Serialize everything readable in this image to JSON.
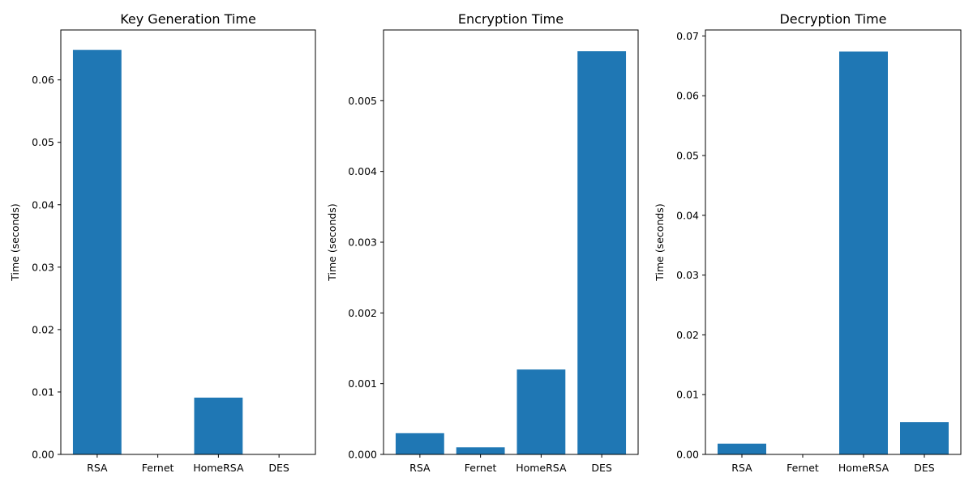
{
  "figure": {
    "bar_color": "#1f77b4",
    "background": "#ffffff"
  },
  "chart_data": [
    {
      "type": "bar",
      "title": "Key Generation Time",
      "xlabel": "",
      "ylabel": "Time (seconds)",
      "categories": [
        "RSA",
        "Fernet",
        "HomeRSA",
        "DES"
      ],
      "values": [
        0.0648,
        0.0,
        0.0091,
        0.0
      ],
      "ylim": [
        0,
        0.068
      ],
      "yticks": [
        "0.00",
        "0.01",
        "0.02",
        "0.03",
        "0.04",
        "0.05",
        "0.06"
      ],
      "ytick_values": [
        0,
        0.01,
        0.02,
        0.03,
        0.04,
        0.05,
        0.06
      ],
      "grid": false
    },
    {
      "type": "bar",
      "title": "Encryption Time",
      "xlabel": "",
      "ylabel": "Time (seconds)",
      "categories": [
        "RSA",
        "Fernet",
        "HomeRSA",
        "DES"
      ],
      "values": [
        0.0003,
        0.0001,
        0.0012,
        0.0057
      ],
      "ylim": [
        0,
        0.006
      ],
      "yticks": [
        "0.000",
        "0.001",
        "0.002",
        "0.003",
        "0.004",
        "0.005"
      ],
      "ytick_values": [
        0,
        0.001,
        0.002,
        0.003,
        0.004,
        0.005
      ],
      "grid": false
    },
    {
      "type": "bar",
      "title": "Decryption Time",
      "xlabel": "",
      "ylabel": "Time (seconds)",
      "categories": [
        "RSA",
        "Fernet",
        "HomeRSA",
        "DES"
      ],
      "values": [
        0.0018,
        0.0,
        0.0674,
        0.0054
      ],
      "ylim": [
        0,
        0.071
      ],
      "yticks": [
        "0.00",
        "0.01",
        "0.02",
        "0.03",
        "0.04",
        "0.05",
        "0.06",
        "0.07"
      ],
      "ytick_values": [
        0,
        0.01,
        0.02,
        0.03,
        0.04,
        0.05,
        0.06,
        0.07
      ],
      "grid": false
    }
  ]
}
